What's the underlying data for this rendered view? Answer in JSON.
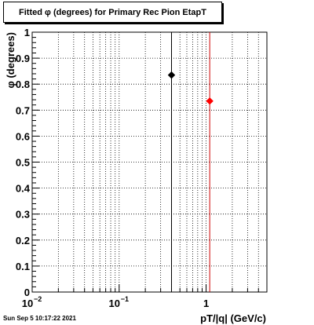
{
  "chart_data": {
    "type": "scatter",
    "title": "Fitted φ (degrees) for Primary Rec Pion EtapT",
    "xlabel": "pT/|q| (GeV/c)",
    "ylabel": "φ (degrees)",
    "xscale": "log",
    "xlim": [
      0.01,
      5
    ],
    "ylim": [
      0,
      1
    ],
    "x_ticks": [
      {
        "value": 0.01,
        "base": "10",
        "exp": "−2"
      },
      {
        "value": 0.1,
        "base": "10",
        "exp": "−1"
      },
      {
        "value": 1,
        "base": "1",
        "exp": ""
      }
    ],
    "y_ticks": [
      "0",
      "0.1",
      "0.2",
      "0.3",
      "0.4",
      "0.5",
      "0.6",
      "0.7",
      "0.8",
      "0.9",
      "1"
    ],
    "grid": true,
    "points": [
      {
        "x": 0.4,
        "y": 0.835,
        "color": "#000000"
      },
      {
        "x": 1.1,
        "y": 0.735,
        "color": "#ff0000"
      }
    ],
    "vlines": [
      {
        "x": 0.4,
        "color": "#000000"
      },
      {
        "x": 1.1,
        "color": "#cc0000"
      }
    ]
  },
  "footer": {
    "timestamp": "Sun Sep  5 10:17:22 2021"
  }
}
